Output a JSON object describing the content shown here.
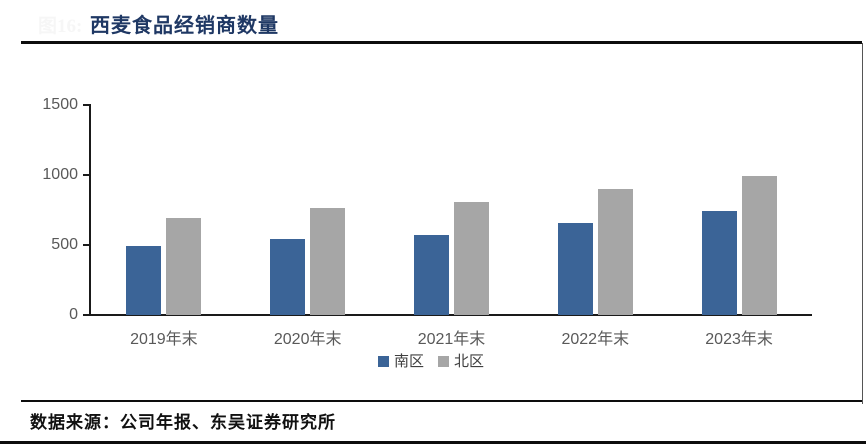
{
  "figure_label": "图16:",
  "header": {
    "title": "西麦食品经销商数量"
  },
  "footer": {
    "source": "数据来源：公司年报、东吴证券研究所"
  },
  "colors": {
    "south_bar": "#3b6497",
    "north_bar": "#a6a6a6",
    "title_text": "#1f3864",
    "axis_label_text": "#595959",
    "rule_black": "#0d0d0d"
  },
  "chart_data": {
    "type": "bar",
    "title": "西麦食品经销商数量",
    "categories": [
      "2019年末",
      "2020年末",
      "2021年末",
      "2022年末",
      "2023年末"
    ],
    "series": [
      {
        "key": "south",
        "name": "南区",
        "color": "#3b6497",
        "values": [
          490,
          545,
          570,
          655,
          740
        ]
      },
      {
        "key": "north",
        "name": "北区",
        "color": "#a6a6a6",
        "values": [
          690,
          765,
          810,
          900,
          990
        ]
      }
    ],
    "xlabel": "",
    "ylabel": "",
    "ylim": [
      0,
      1500
    ],
    "yticks": [
      0,
      500,
      1000,
      1500
    ],
    "grid": false,
    "legend_position": "bottom"
  }
}
